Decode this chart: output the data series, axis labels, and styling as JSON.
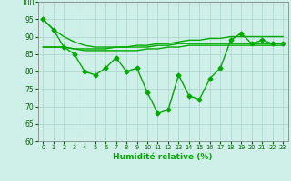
{
  "xlabel": "Humidité relative (%)",
  "ylabel": "",
  "xlim": [
    -0.5,
    23.5
  ],
  "ylim": [
    60,
    100
  ],
  "yticks": [
    60,
    65,
    70,
    75,
    80,
    85,
    90,
    95,
    100
  ],
  "xticks": [
    0,
    1,
    2,
    3,
    4,
    5,
    6,
    7,
    8,
    9,
    10,
    11,
    12,
    13,
    14,
    15,
    16,
    17,
    18,
    19,
    20,
    21,
    22,
    23
  ],
  "background_color": "#cff0e8",
  "grid_color": "#aad4cc",
  "line_color": "#00aa00",
  "line1_y": [
    95,
    92,
    87,
    85,
    80,
    79,
    81,
    84,
    80,
    81,
    74,
    68,
    69,
    79,
    73,
    72,
    78,
    81,
    89,
    91,
    88,
    89,
    88,
    88
  ],
  "line2_y": [
    95,
    92,
    90,
    88.5,
    87.5,
    87,
    87,
    87,
    87,
    87.5,
    87.5,
    88,
    88,
    88.5,
    89,
    89,
    89.5,
    89.5,
    90,
    90,
    90,
    90,
    90,
    90
  ],
  "line3_y": [
    87,
    87,
    87,
    86.5,
    86.5,
    86.5,
    86.5,
    87,
    87,
    87,
    87,
    87.5,
    87.5,
    88,
    88,
    88,
    88,
    88,
    88,
    88,
    88,
    88,
    88,
    88
  ],
  "line4_y": [
    87,
    87,
    87,
    86.5,
    86,
    86,
    86,
    86,
    86,
    86,
    86.5,
    86.5,
    87,
    87,
    87.5,
    87.5,
    87.5,
    87.5,
    87.5,
    87.5,
    87.5,
    87.5,
    87.5,
    87.5
  ],
  "marker": "D",
  "markersize": 2.5,
  "linewidth": 1.0
}
